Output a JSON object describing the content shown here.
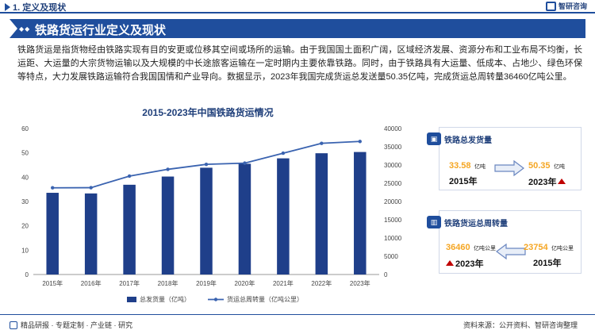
{
  "header": {
    "section_title": "1. 定义及现状",
    "brand": "智研咨询"
  },
  "banner": {
    "title": "铁路货运行业定义及现状"
  },
  "intro": {
    "paragraph": "铁路货运是指货物经由铁路实现有目的安更或位移其空间或场所的运输。由于我国国土面积广阔，区域经济发展、资源分布和工业布局不均衡，长运距、大运量的大宗货物运输以及大规模的中长途旅客运输在一定时期内主要依靠铁路。同时，由于铁路具有大运量、低成本、占地少、绿色环保等特点，大力发展铁路运输符合我国国情和产业导向。数据显示，2023年我国完成货运总发送量50.35亿吨，完成货运总周转量36460亿吨公里。"
  },
  "chart_data": {
    "type": "bar+line",
    "title": "2015-2023年中国铁路货运情况",
    "categories": [
      "2015年",
      "2016年",
      "2017年",
      "2018年",
      "2019年",
      "2020年",
      "2021年",
      "2022年",
      "2023年"
    ],
    "series": [
      {
        "name": "总发货量（亿吨）",
        "type": "bar",
        "axis": "left",
        "color": "#1f3f8a",
        "values": [
          33.58,
          33.32,
          36.89,
          40.26,
          43.89,
          45.52,
          47.74,
          49.84,
          50.35
        ]
      },
      {
        "name": "货运总周转量（亿吨公里）",
        "type": "line",
        "axis": "right",
        "color": "#3a63b0",
        "values": [
          23754,
          23792,
          26962,
          28821,
          30182,
          30515,
          33238,
          35946,
          36460
        ]
      }
    ],
    "ylim_left": [
      0,
      60
    ],
    "yticks_left": [
      "0",
      "10",
      "20",
      "30",
      "40",
      "50",
      "60"
    ],
    "ylim_right": [
      0,
      40000
    ],
    "yticks_right": [
      "0",
      "5000",
      "10000",
      "15000",
      "20000",
      "25000",
      "30000",
      "35000",
      "40000"
    ],
    "legend_position": "bottom",
    "grid": false
  },
  "card_freight": {
    "title": "铁路总发货量",
    "from_value": "33.58",
    "from_unit": "亿吨",
    "from_year": "2015年",
    "to_value": "50.35",
    "to_unit": "亿吨",
    "to_year": "2023年"
  },
  "card_turnover": {
    "title": "铁路货运总周转量",
    "to_value": "36460",
    "to_unit": "亿吨公里",
    "to_year": "2023年",
    "from_value": "23754",
    "from_unit": "亿吨公里",
    "from_year": "2015年"
  },
  "footer": {
    "left": "精品研报 · 专题定制 · 产业链 · 研究",
    "right": "资料来源：公开资料、智研咨询整理"
  },
  "colors": {
    "primary": "#1f4e9d",
    "accent_orange": "#f5a623",
    "arrow_red": "#c00000"
  }
}
